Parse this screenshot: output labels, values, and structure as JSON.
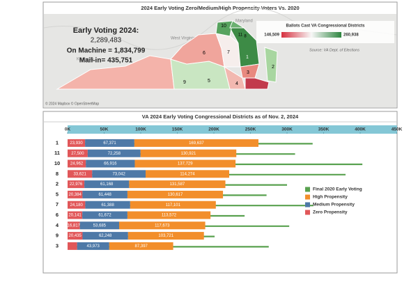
{
  "map_panel": {
    "title": "2024 Early Voting Zero/Medium/High Propensity Voters Vs. 2020",
    "summary": [
      "Early Voting 2024:",
      "2,289,483",
      "On Machine = 1,834,799",
      "Mail-in= 435,751"
    ],
    "legend_title": "Ballots Cast VA Congressional Districts",
    "legend_min": "146,509",
    "legend_max": "260,938",
    "source": "Source: VA Dept. of Elections",
    "credit": "© 2024 Mapbox © OpenStreetMap",
    "place_labels": [
      "West Virginia",
      "Kentucky",
      "Maryland"
    ],
    "district_labels": [
      "9",
      "5",
      "6",
      "7",
      "1",
      "10",
      "11",
      "8",
      "2",
      "3",
      "4"
    ]
  },
  "chart_data": {
    "type": "bar",
    "orientation": "horizontal",
    "stacked": true,
    "title": "VA 2024 Early Voting Congressional Districts as of Nov. 2, 2024",
    "categories": [
      "1",
      "11",
      "10",
      "8",
      "2",
      "5",
      "7",
      "6",
      "4",
      "9",
      "3"
    ],
    "xlim": [
      0,
      460000
    ],
    "xticks": [
      {
        "value": 0,
        "label": "0K"
      },
      {
        "value": 50000,
        "label": "50K"
      },
      {
        "value": 100000,
        "label": "100K"
      },
      {
        "value": 150000,
        "label": "150K"
      },
      {
        "value": 200000,
        "label": "200K"
      },
      {
        "value": 250000,
        "label": "250K"
      },
      {
        "value": 300000,
        "label": "300K"
      },
      {
        "value": 350000,
        "label": "350K"
      },
      {
        "value": 400000,
        "label": "400K"
      },
      {
        "value": 450000,
        "label": "450K"
      }
    ],
    "series": [
      {
        "name": "Zero Propensity",
        "color": "#e15759",
        "type": "bar",
        "values": [
          23930,
          27500,
          24962,
          33621,
          22976,
          20384,
          24180,
          20141,
          16817,
          20435,
          13000
        ],
        "value_labels": [
          "23,930",
          "27,500",
          "24,962",
          "33,621",
          "22,976",
          "20,384",
          "24,180",
          "20,141",
          "16,817",
          "20,435",
          null
        ]
      },
      {
        "name": "Medium Propensity",
        "color": "#4e79a7",
        "type": "bar",
        "values": [
          67371,
          72258,
          66916,
          73042,
          61168,
          61448,
          61388,
          61672,
          53685,
          62248,
          43973
        ],
        "value_labels": [
          "67,371",
          "72,258",
          "66,916",
          "73,042",
          "61,168",
          "61,448",
          "61,388",
          "61,672",
          "53,685",
          "62,248",
          "43,973"
        ]
      },
      {
        "name": "High Propensity",
        "color": "#f28e2b",
        "type": "bar",
        "values": [
          169637,
          130921,
          137729,
          114274,
          131587,
          130617,
          117101,
          113572,
          117673,
          103721,
          87397
        ],
        "value_labels": [
          "169,637",
          "130,921",
          "137,729",
          "114,274",
          "131,587",
          "130,617",
          "117,101",
          "113,572",
          "117,673",
          "103,721",
          "87,397"
        ]
      },
      {
        "name": "Final 2020 Early Voting",
        "color": "#59a14f",
        "type": "rule",
        "values": [
          335000,
          311000,
          403000,
          380000,
          300000,
          272000,
          336000,
          242000,
          303000,
          201000,
          275000
        ]
      }
    ]
  }
}
